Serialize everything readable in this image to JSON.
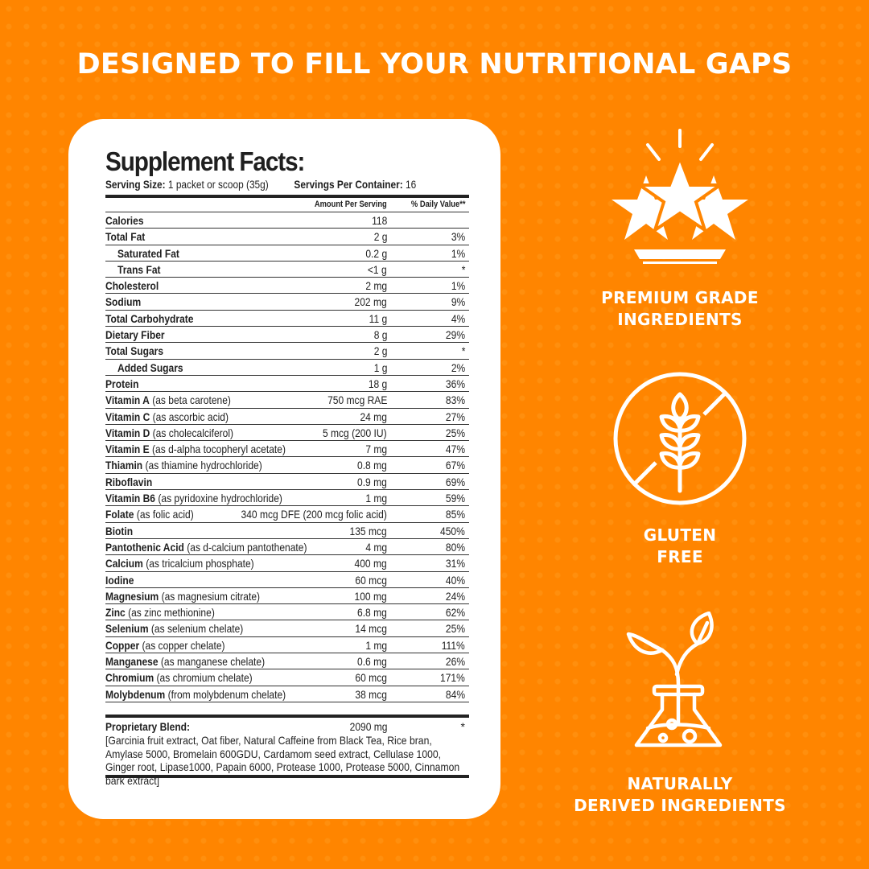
{
  "headline": "DESIGNED TO FILL YOUR NUTRITIONAL GAPS",
  "colors": {
    "background": "#FF8500",
    "card": "#FFFFFF",
    "text_dark": "#1F1F1F",
    "text_light": "#FFFFFF"
  },
  "facts": {
    "title": "Supplement Facts:",
    "serving_size_label": "Serving Size:",
    "serving_size_value": " 1 packet or scoop (35g)",
    "servings_per_container_label": "Servings Per Container:",
    "servings_per_container_value": " 16",
    "column_amount": "Amount Per Serving",
    "column_dv": "% Daily Value**",
    "rows": [
      {
        "name": "Calories",
        "detail": "",
        "amount": "118",
        "dv": "",
        "indent": false
      },
      {
        "name": "Total Fat",
        "detail": "",
        "amount": "2 g",
        "dv": "3%",
        "indent": false
      },
      {
        "name": "Saturated Fat",
        "detail": "",
        "amount": "0.2 g",
        "dv": "1%",
        "indent": true
      },
      {
        "name": "Trans Fat",
        "detail": "",
        "amount": "<1 g",
        "dv": "*",
        "indent": true
      },
      {
        "name": "Cholesterol",
        "detail": "",
        "amount": "2 mg",
        "dv": "1%",
        "indent": false
      },
      {
        "name": "Sodium",
        "detail": "",
        "amount": "202 mg",
        "dv": "9%",
        "indent": false
      },
      {
        "name": "Total Carbohydrate",
        "detail": "",
        "amount": "11 g",
        "dv": "4%",
        "indent": false
      },
      {
        "name": "Dietary Fiber",
        "detail": "",
        "amount": "8 g",
        "dv": "29%",
        "indent": false
      },
      {
        "name": "Total Sugars",
        "detail": "",
        "amount": "2 g",
        "dv": "*",
        "indent": false
      },
      {
        "name": "Added Sugars",
        "detail": "",
        "amount": "1 g",
        "dv": "2%",
        "indent": true
      },
      {
        "name": "Protein",
        "detail": "",
        "amount": "18 g",
        "dv": "36%",
        "indent": false
      },
      {
        "name": "Vitamin A",
        "detail": " (as beta carotene)",
        "amount": "750 mcg RAE",
        "dv": "83%",
        "indent": false
      },
      {
        "name": "Vitamin C",
        "detail": " (as ascorbic acid)",
        "amount": "24 mg",
        "dv": "27%",
        "indent": false
      },
      {
        "name": "Vitamin D",
        "detail": " (as cholecalciferol)",
        "amount": "5 mcg (200 IU)",
        "dv": "25%",
        "indent": false
      },
      {
        "name": "Vitamin E",
        "detail": " (as d-alpha tocopheryl acetate)",
        "amount": "7 mg",
        "dv": "47%",
        "indent": false
      },
      {
        "name": "Thiamin",
        "detail": " (as thiamine hydrochloride)",
        "amount": "0.8 mg",
        "dv": "67%",
        "indent": false
      },
      {
        "name": "Riboflavin",
        "detail": "",
        "amount": "0.9 mg",
        "dv": "69%",
        "indent": false
      },
      {
        "name": "Vitamin B6",
        "detail": " (as pyridoxine hydrochloride)",
        "amount": "1 mg",
        "dv": "59%",
        "indent": false
      },
      {
        "name": "Folate",
        "detail": " (as folic acid)",
        "amount": "340 mcg DFE (200 mcg folic acid)",
        "dv": "85%",
        "indent": false
      },
      {
        "name": "Biotin",
        "detail": "",
        "amount": "135 mcg",
        "dv": "450%",
        "indent": false
      },
      {
        "name": "Pantothenic Acid",
        "detail": " (as d-calcium pantothenate)",
        "amount": "4 mg",
        "dv": "80%",
        "indent": false
      },
      {
        "name": "Calcium",
        "detail": " (as tricalcium phosphate)",
        "amount": "400 mg",
        "dv": "31%",
        "indent": false
      },
      {
        "name": "Iodine",
        "detail": "",
        "amount": "60 mcg",
        "dv": "40%",
        "indent": false
      },
      {
        "name": "Magnesium",
        "detail": " (as magnesium citrate)",
        "amount": "100 mg",
        "dv": "24%",
        "indent": false
      },
      {
        "name": "Zinc",
        "detail": " (as zinc methionine)",
        "amount": "6.8 mg",
        "dv": "62%",
        "indent": false
      },
      {
        "name": "Selenium",
        "detail": " (as selenium chelate)",
        "amount": "14 mcg",
        "dv": "25%",
        "indent": false
      },
      {
        "name": "Copper",
        "detail": " (as copper chelate)",
        "amount": "1 mg",
        "dv": "111%",
        "indent": false
      },
      {
        "name": "Manganese",
        "detail": " (as manganese chelate)",
        "amount": "0.6 mg",
        "dv": "26%",
        "indent": false
      },
      {
        "name": "Chromium",
        "detail": " (as chromium chelate)",
        "amount": "60 mcg",
        "dv": "171%",
        "indent": false
      },
      {
        "name": "Molybdenum",
        "detail": " (from molybdenum chelate)",
        "amount": "38 mcg",
        "dv": "84%",
        "indent": false
      }
    ],
    "blend": {
      "name": "Proprietary Blend:",
      "amount": "2090 mg",
      "dv": "*",
      "ingredients": "[Garcinia fruit extract, Oat fiber, Natural Caffeine from Black Tea, Rice bran, Amylase 5000, Bromelain 600GDU, Cardamom seed extract, Cellulase 1000, Ginger root, Lipase1000, Papain 6000, Protease 1000, Protease 5000, Cinnamon bark extract]"
    }
  },
  "features": [
    {
      "icon": "stars-icon",
      "line1": "PREMIUM GRADE",
      "line2": "INGREDIENTS"
    },
    {
      "icon": "gluten-free-icon",
      "line1": "GLUTEN",
      "line2": "FREE"
    },
    {
      "icon": "plant-flask-icon",
      "line1": "NATURALLY",
      "line2": "DERIVED INGREDIENTS"
    }
  ]
}
